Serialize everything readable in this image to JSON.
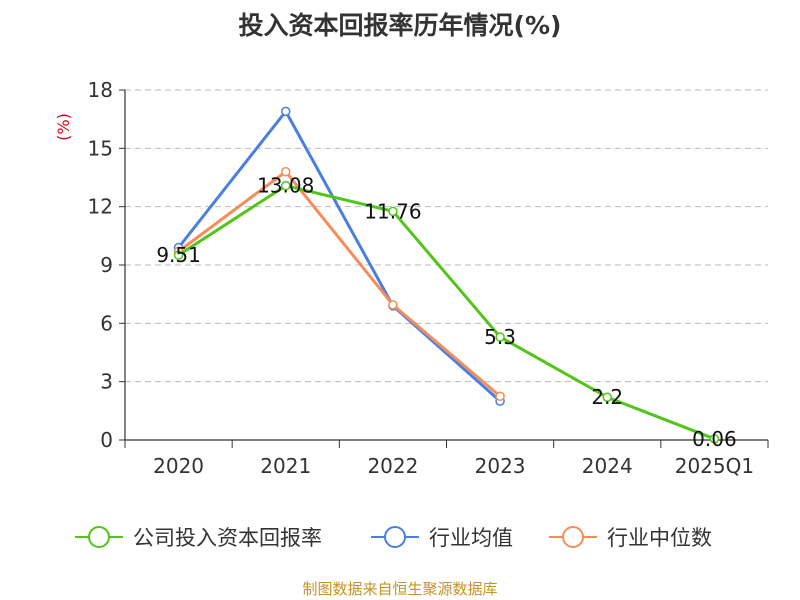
{
  "colors": {
    "company": "#52c41a",
    "industry_avg": "#4a7fe0",
    "industry_median": "#f58d5a",
    "grid": "#bbbbbb",
    "axis": "#333333",
    "ylabel": "#d9001b",
    "source": "#c8912a"
  },
  "chart_data": {
    "type": "line",
    "title": "投入资本回报率历年情况(%)",
    "ylabel": "(%)",
    "xlabel": "",
    "categories": [
      "2020",
      "2021",
      "2022",
      "2023",
      "2024",
      "2025Q1"
    ],
    "ylim": [
      0,
      18
    ],
    "yticks": [
      0,
      3,
      6,
      9,
      12,
      15,
      18
    ],
    "grid": true,
    "legend_position": "bottom",
    "series": [
      {
        "name": "公司投入资本回报率",
        "key": "company",
        "values": [
          9.51,
          13.08,
          11.76,
          5.3,
          2.2,
          0.06
        ],
        "labels": [
          "9.51",
          "13.08",
          "11.76",
          "5.3",
          "2.2",
          "0.06"
        ]
      },
      {
        "name": "行业均值",
        "key": "industry_avg",
        "values": [
          9.9,
          16.9,
          6.9,
          2.0,
          null,
          null
        ]
      },
      {
        "name": "行业中位数",
        "key": "industry_median",
        "values": [
          9.7,
          13.8,
          6.95,
          2.25,
          null,
          null
        ]
      }
    ]
  },
  "source_text": "制图数据来自恒生聚源数据库"
}
